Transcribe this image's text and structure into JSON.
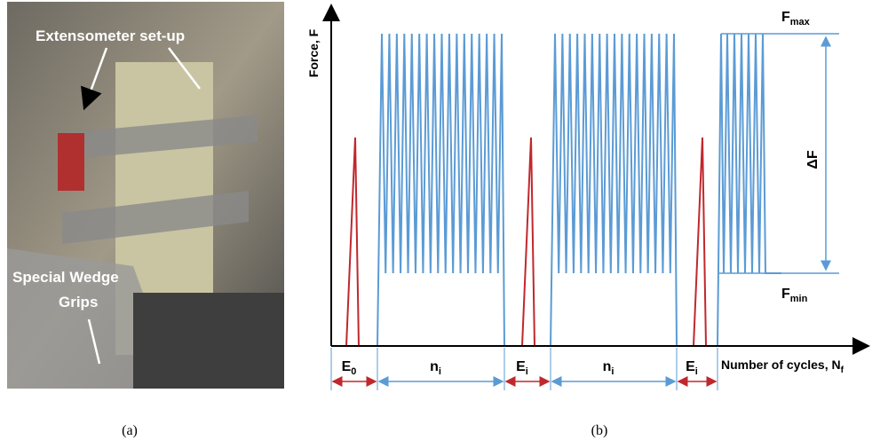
{
  "panel_a": {
    "label_top": "Extensometer set-up",
    "label_bottom_1": "Special Wedge",
    "label_bottom_2": "Grips",
    "caption": "(a)"
  },
  "panel_b": {
    "y_axis_label": "Force, F",
    "x_axis_label": {
      "main": "Number of cycles, N",
      "sub": "f"
    },
    "f_max": {
      "main": "F",
      "sub": "max"
    },
    "f_min": {
      "main": "F",
      "sub": "min"
    },
    "delta_f": "ΔF",
    "segments": [
      {
        "main": "E",
        "sub": "0"
      },
      {
        "main": "n",
        "sub": "i"
      },
      {
        "main": "E",
        "sub": "i"
      },
      {
        "main": "n",
        "sub": "i"
      },
      {
        "main": "E",
        "sub": "i"
      }
    ],
    "caption": "(b)"
  }
}
